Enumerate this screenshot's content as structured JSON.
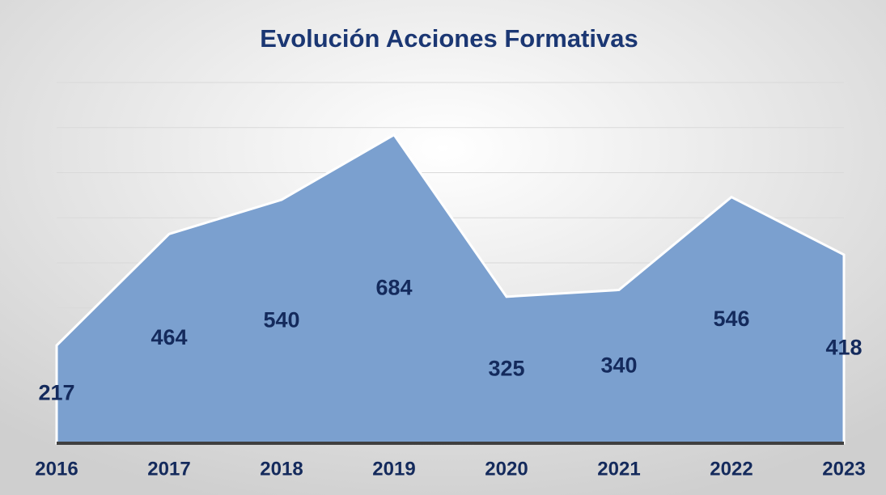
{
  "chart_data": {
    "type": "area",
    "title": "Evolución Acciones Formativas",
    "categories": [
      "2016",
      "2017",
      "2018",
      "2019",
      "2020",
      "2021",
      "2022",
      "2023"
    ],
    "values": [
      217,
      464,
      540,
      684,
      325,
      340,
      546,
      418
    ],
    "color": "#7ba0cf",
    "ylim": [
      0,
      800
    ],
    "yticks": [
      0,
      100,
      200,
      300,
      400,
      500,
      600,
      700,
      800
    ],
    "grid": true
  }
}
